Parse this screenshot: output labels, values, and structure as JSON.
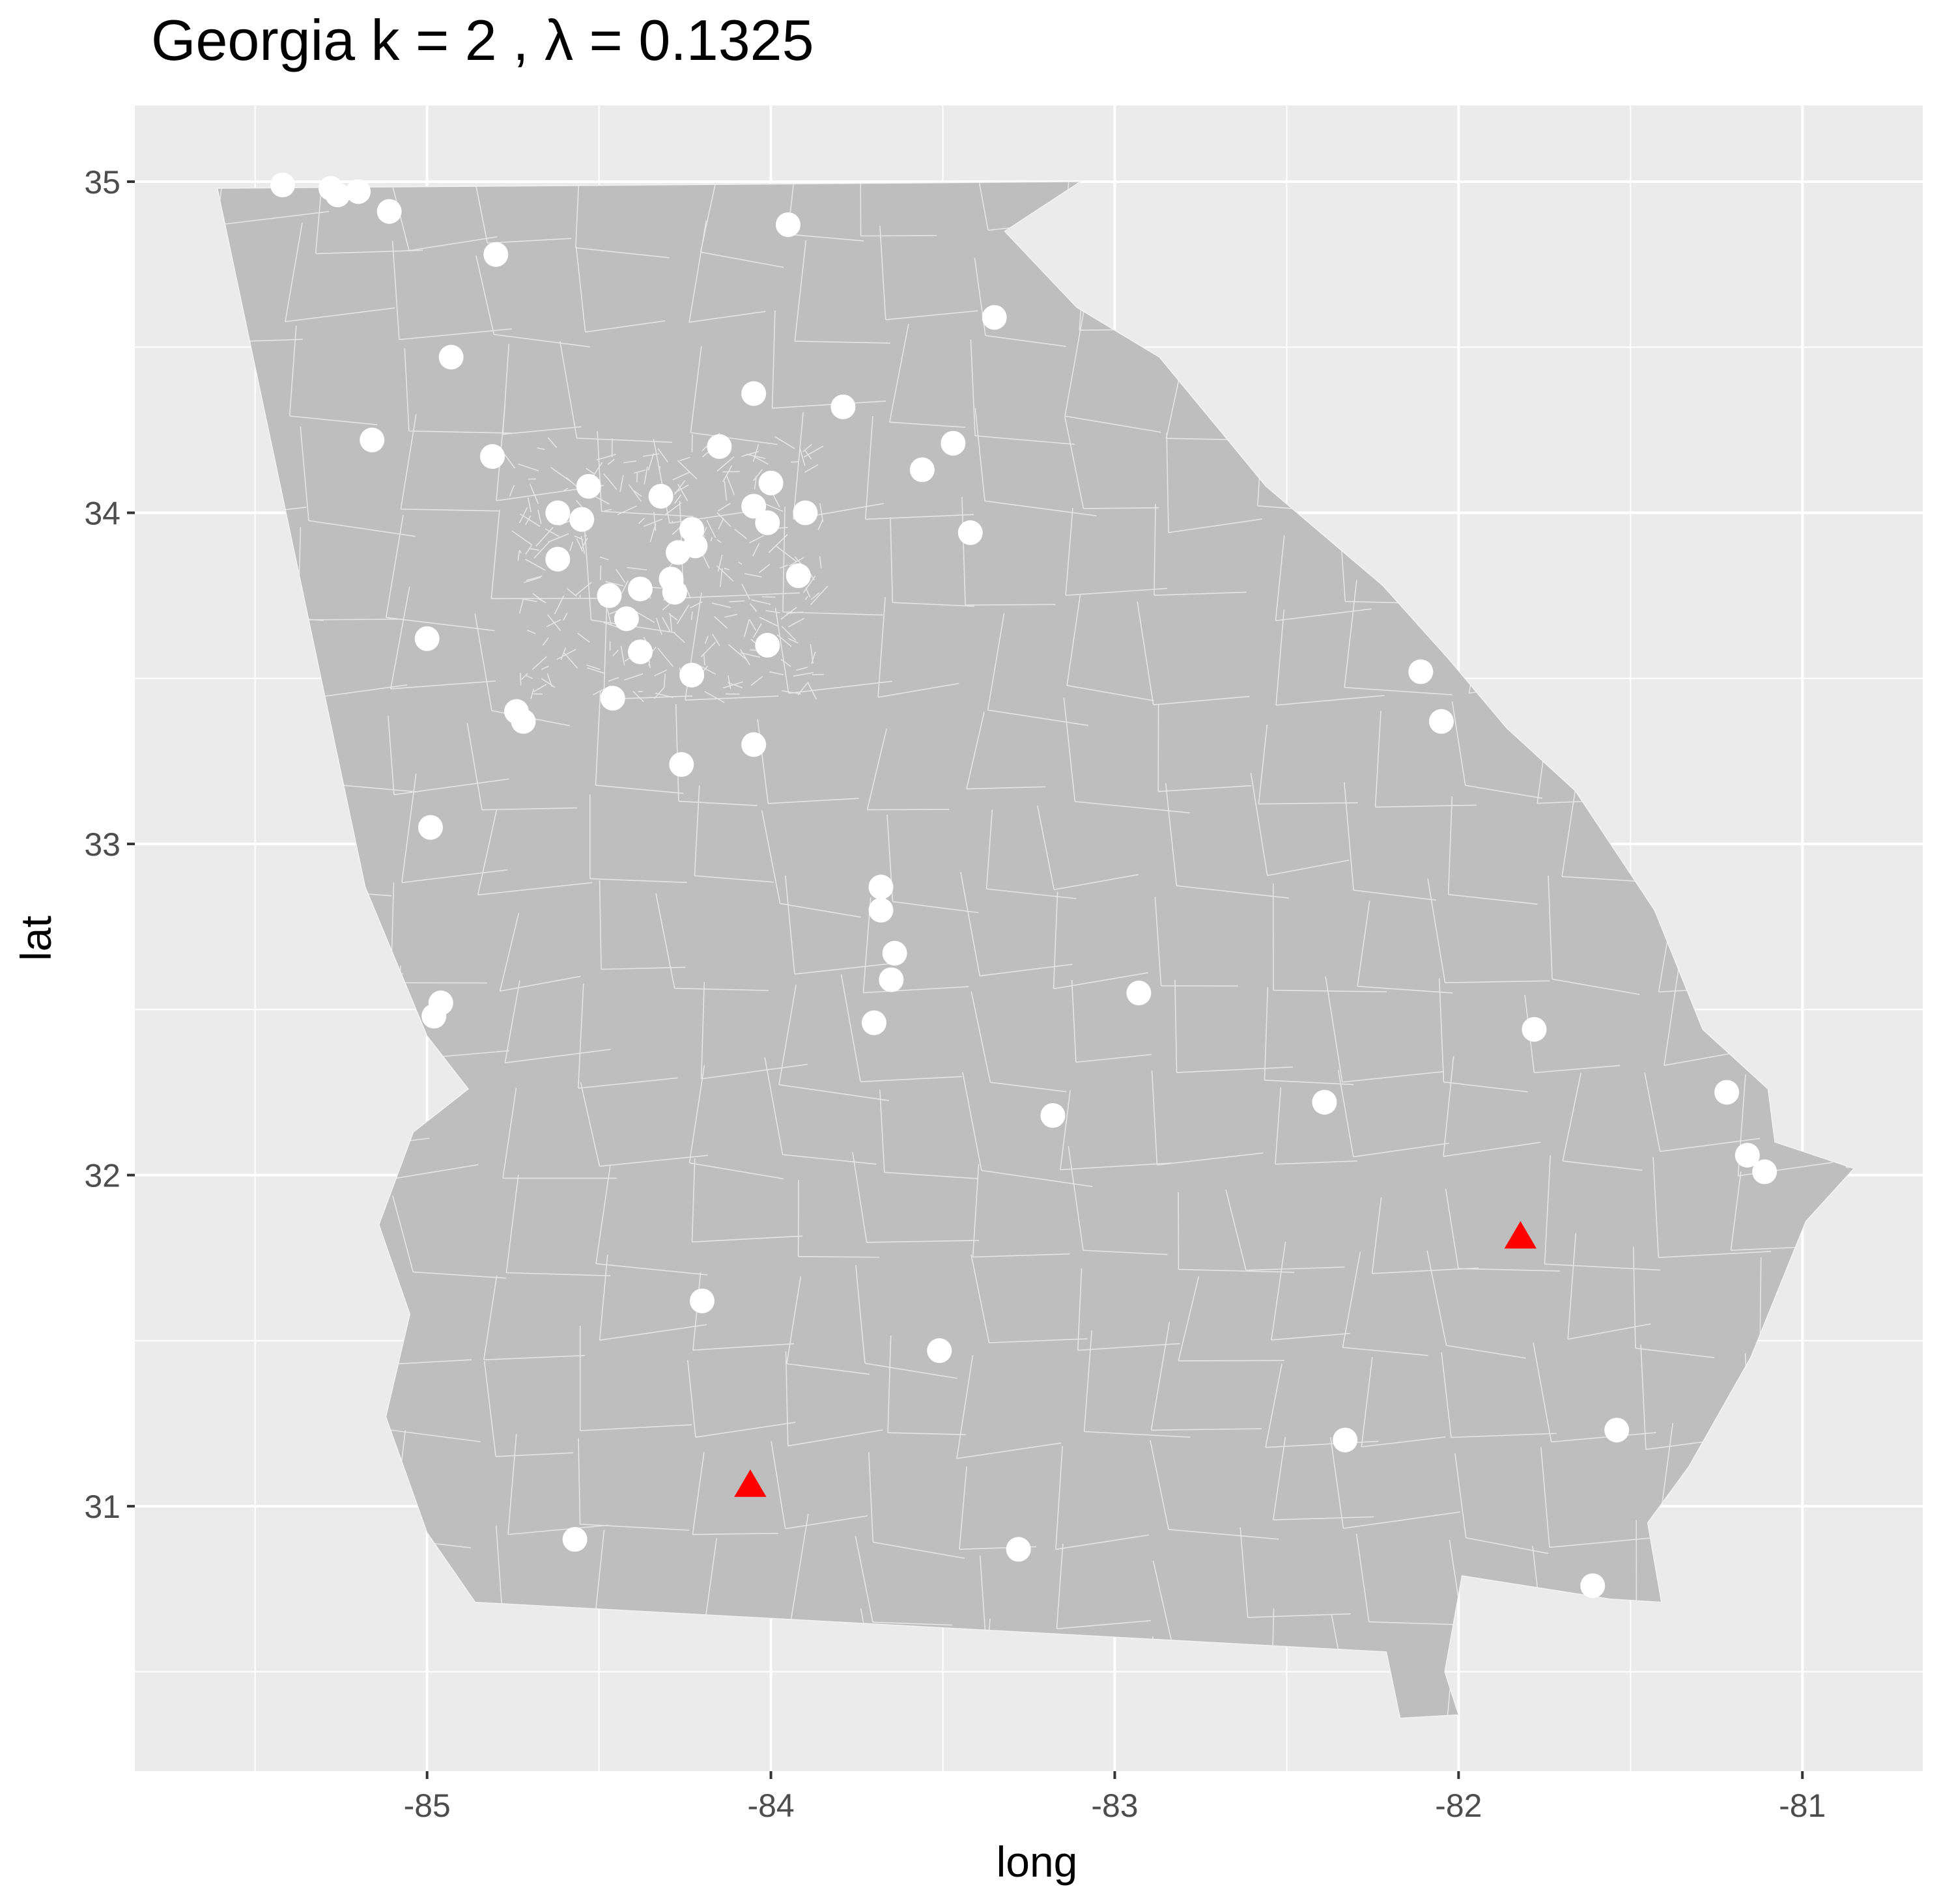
{
  "title": "Georgia  k =  2 ,  λ  =  0.1325",
  "colors": {
    "panel": "#ebebeb",
    "grid": "#ffffff",
    "land": "#bebebe",
    "boundary": "#f2f2f2",
    "point": "#ffffff",
    "triangle": "#ff0000"
  },
  "chart_data": {
    "type": "scatter",
    "title": "Georgia  k =  2 ,  λ  =  0.1325",
    "xlabel": "long",
    "ylabel": "lat",
    "xlim": [
      -85.85,
      -80.65
    ],
    "ylim": [
      30.2,
      35.23
    ],
    "x_ticks": [
      -85,
      -84,
      -83,
      -82,
      -81
    ],
    "x_tick_labels": [
      "-85",
      "-84",
      "-83",
      "-82",
      "-81"
    ],
    "y_ticks": [
      31,
      32,
      33,
      34,
      35
    ],
    "y_tick_labels": [
      "31",
      "32",
      "33",
      "34",
      "35"
    ],
    "grid": true,
    "state_outline": [
      [
        -85.61,
        34.98
      ],
      [
        -83.1,
        35.0
      ],
      [
        -83.32,
        34.85
      ],
      [
        -83.11,
        34.62
      ],
      [
        -82.87,
        34.47
      ],
      [
        -82.56,
        34.08
      ],
      [
        -82.22,
        33.78
      ],
      [
        -82.03,
        33.56
      ],
      [
        -81.86,
        33.35
      ],
      [
        -81.66,
        33.16
      ],
      [
        -81.43,
        32.8
      ],
      [
        -81.29,
        32.44
      ],
      [
        -81.1,
        32.26
      ],
      [
        -81.08,
        32.1
      ],
      [
        -80.85,
        32.02
      ],
      [
        -80.99,
        31.86
      ],
      [
        -81.15,
        31.45
      ],
      [
        -81.33,
        31.12
      ],
      [
        -81.45,
        30.95
      ],
      [
        -81.41,
        30.71
      ],
      [
        -81.56,
        30.72
      ],
      [
        -81.99,
        30.79
      ],
      [
        -82.04,
        30.5
      ],
      [
        -82.0,
        30.37
      ],
      [
        -82.17,
        30.36
      ],
      [
        -82.21,
        30.56
      ],
      [
        -84.86,
        30.71
      ],
      [
        -85.0,
        30.92
      ],
      [
        -85.12,
        31.27
      ],
      [
        -85.05,
        31.58
      ],
      [
        -85.14,
        31.85
      ],
      [
        -85.04,
        32.13
      ],
      [
        -84.88,
        32.26
      ],
      [
        -85.0,
        32.42
      ],
      [
        -85.18,
        32.87
      ],
      [
        -85.61,
        34.98
      ]
    ],
    "series": [
      {
        "marker": "circle",
        "color": "#ffffff",
        "points": [
          [
            -85.42,
            34.99
          ],
          [
            -85.28,
            34.98
          ],
          [
            -85.26,
            34.96
          ],
          [
            -85.2,
            34.97
          ],
          [
            -85.11,
            34.91
          ],
          [
            -84.8,
            34.78
          ],
          [
            -83.95,
            34.87
          ],
          [
            -83.35,
            34.59
          ],
          [
            -84.93,
            34.47
          ],
          [
            -84.05,
            34.36
          ],
          [
            -83.79,
            34.32
          ],
          [
            -85.16,
            34.22
          ],
          [
            -84.81,
            34.17
          ],
          [
            -84.15,
            34.2
          ],
          [
            -83.47,
            34.21
          ],
          [
            -83.56,
            34.13
          ],
          [
            -84.53,
            34.08
          ],
          [
            -84.0,
            34.09
          ],
          [
            -84.32,
            34.05
          ],
          [
            -84.62,
            34.0
          ],
          [
            -84.55,
            33.98
          ],
          [
            -84.05,
            34.02
          ],
          [
            -84.01,
            33.97
          ],
          [
            -83.9,
            34.0
          ],
          [
            -84.23,
            33.95
          ],
          [
            -83.42,
            33.94
          ],
          [
            -84.27,
            33.88
          ],
          [
            -84.22,
            33.9
          ],
          [
            -84.62,
            33.86
          ],
          [
            -83.92,
            33.81
          ],
          [
            -84.29,
            33.8
          ],
          [
            -84.38,
            33.77
          ],
          [
            -84.28,
            33.76
          ],
          [
            -84.47,
            33.75
          ],
          [
            -84.42,
            33.68
          ],
          [
            -85.0,
            33.62
          ],
          [
            -84.01,
            33.6
          ],
          [
            -84.38,
            33.58
          ],
          [
            -84.23,
            33.51
          ],
          [
            -84.46,
            33.44
          ],
          [
            -84.74,
            33.4
          ],
          [
            -84.72,
            33.37
          ],
          [
            -84.05,
            33.3
          ],
          [
            -84.26,
            33.24
          ],
          [
            -82.11,
            33.52
          ],
          [
            -82.05,
            33.37
          ],
          [
            -84.99,
            33.05
          ],
          [
            -83.68,
            32.87
          ],
          [
            -83.68,
            32.8
          ],
          [
            -83.64,
            32.67
          ],
          [
            -83.65,
            32.59
          ],
          [
            -83.7,
            32.46
          ],
          [
            -84.96,
            32.52
          ],
          [
            -84.98,
            32.48
          ],
          [
            -82.93,
            32.55
          ],
          [
            -81.78,
            32.44
          ],
          [
            -83.18,
            32.18
          ],
          [
            -82.39,
            32.22
          ],
          [
            -81.22,
            32.25
          ],
          [
            -81.16,
            32.06
          ],
          [
            -81.11,
            32.01
          ],
          [
            -84.2,
            31.62
          ],
          [
            -83.51,
            31.47
          ],
          [
            -82.33,
            31.2
          ],
          [
            -81.54,
            31.23
          ],
          [
            -84.57,
            30.9
          ],
          [
            -83.28,
            30.87
          ],
          [
            -81.61,
            30.76
          ]
        ]
      },
      {
        "marker": "triangle",
        "color": "#ff0000",
        "points": [
          [
            -81.82,
            31.81
          ],
          [
            -84.06,
            31.06
          ]
        ]
      }
    ]
  }
}
